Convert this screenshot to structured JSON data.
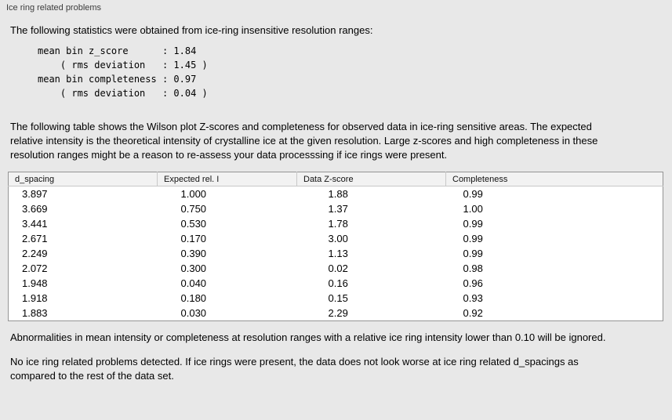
{
  "panel": {
    "title": "Ice ring related problems"
  },
  "intro": {
    "text": "The following statistics were obtained from ice-ring insensitive resolution ranges:"
  },
  "stats_block": {
    "lines": [
      "mean bin z_score      : 1.84",
      "    ( rms deviation   : 1.45 )",
      "mean bin completeness : 0.97",
      "    ( rms deviation   : 0.04 )"
    ]
  },
  "description": {
    "text": "The following table shows the Wilson plot Z-scores and completeness for observed data in ice-ring sensitive areas. The expected relative intensity is the theoretical intensity of crystalline ice at the given resolution. Large z-scores and high completeness in these resolution ranges might be a reason to re-assess your data processsing if ice rings were present."
  },
  "table": {
    "columns": [
      "d_spacing",
      "Expected rel. I",
      "Data Z-score",
      "Completeness"
    ],
    "rows": [
      [
        "3.897",
        "1.000",
        "1.88",
        "0.99"
      ],
      [
        "3.669",
        "0.750",
        "1.37",
        "1.00"
      ],
      [
        "3.441",
        "0.530",
        "1.78",
        "0.99"
      ],
      [
        "2.671",
        "0.170",
        "3.00",
        "0.99"
      ],
      [
        "2.249",
        "0.390",
        "1.13",
        "0.99"
      ],
      [
        "2.072",
        "0.300",
        "0.02",
        "0.98"
      ],
      [
        "1.948",
        "0.040",
        "0.16",
        "0.96"
      ],
      [
        "1.918",
        "0.180",
        "0.15",
        "0.93"
      ],
      [
        "1.883",
        "0.030",
        "2.29",
        "0.92"
      ]
    ]
  },
  "note": {
    "text": "Abnormalities in mean intensity or completeness at resolution ranges with a relative ice ring intensity lower than 0.10 will be ignored."
  },
  "conclusion": {
    "text": "No ice ring related problems detected. If ice rings were present, the data does not look worse at ice ring related d_spacings as compared to the rest of the data set."
  }
}
